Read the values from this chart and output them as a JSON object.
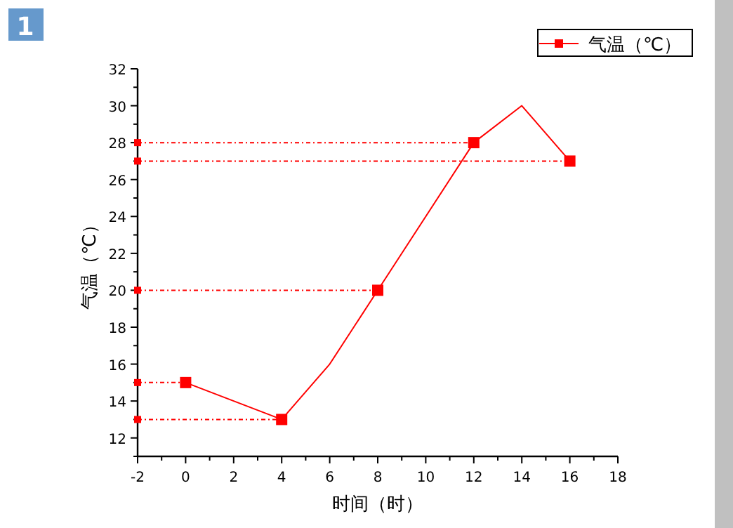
{
  "chart_data": {
    "type": "line",
    "xlabel": "时间（时）",
    "ylabel": "气温（℃）",
    "annotations": [
      "1"
    ],
    "xlim": [
      -2,
      18
    ],
    "xticks": [
      -2,
      0,
      2,
      4,
      6,
      8,
      10,
      12,
      14,
      16,
      18
    ],
    "ylim": [
      11,
      32
    ],
    "yticks": [
      12,
      14,
      16,
      18,
      20,
      22,
      24,
      26,
      28,
      30,
      32
    ],
    "legend": "top right",
    "grid": false,
    "series": [
      {
        "name": "气温（℃）",
        "type": "line",
        "color": "#ff0000",
        "x": [
          0,
          4,
          6,
          8,
          12,
          14,
          16
        ],
        "values": [
          15,
          13,
          16,
          20,
          28,
          30,
          27
        ],
        "line_style": "solid"
      },
      {
        "type": "scatter",
        "color": "#ff0000",
        "x": [
          0,
          4,
          8,
          12,
          16
        ],
        "values": [
          15,
          13,
          20,
          28,
          27
        ],
        "marker": "square"
      },
      {
        "type": "line",
        "color": "#ff0000",
        "x": [
          -2,
          0
        ],
        "values": [
          15,
          15
        ],
        "marker": "square",
        "line_style": "dashed"
      },
      {
        "type": "line",
        "color": "#ff0000",
        "x": [
          -2,
          4
        ],
        "values": [
          13,
          13
        ],
        "marker": "square",
        "line_style": "dashed"
      },
      {
        "type": "line",
        "color": "#ff0000",
        "x": [
          -2,
          8
        ],
        "values": [
          20,
          20
        ],
        "marker": "square",
        "line_style": "dashed"
      },
      {
        "type": "line",
        "color": "#ff0000",
        "x": [
          -2,
          12
        ],
        "values": [
          28,
          28
        ],
        "marker": "square",
        "line_style": "dashed"
      },
      {
        "type": "line",
        "color": "#ff0000",
        "x": [
          -2,
          16
        ],
        "values": [
          27,
          27
        ],
        "marker": "square",
        "line_style": "dashed"
      }
    ]
  }
}
